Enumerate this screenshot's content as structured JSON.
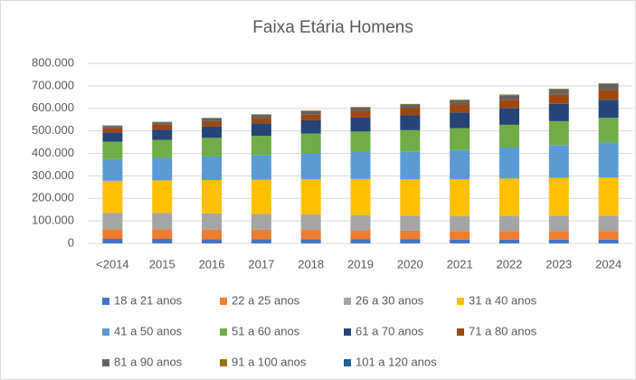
{
  "chart_data": {
    "type": "bar",
    "stacked": true,
    "title": "Faixa Etária  Homens",
    "categories": [
      "<2014",
      "2015",
      "2016",
      "2017",
      "2018",
      "2019",
      "2020",
      "2021",
      "2022",
      "2023",
      "2024"
    ],
    "ylim": [
      0,
      800000
    ],
    "yticks": [
      0,
      {
        "value": 100000,
        "label": "100.000"
      },
      {
        "value": 200000,
        "label": "200.000"
      },
      {
        "value": 300000,
        "label": "300.000"
      },
      {
        "value": 400000,
        "label": "400.000"
      },
      {
        "value": 500000,
        "label": "500.000"
      },
      {
        "value": 600000,
        "label": "600.000"
      },
      {
        "value": 700000,
        "label": "700.000"
      },
      {
        "value": 800000,
        "label": "800.000"
      }
    ],
    "grid": true,
    "legend": "bottom",
    "series": [
      {
        "name": "18 a 21 anos",
        "color": "#4472c4",
        "values": [
          20000,
          20000,
          19000,
          19000,
          19000,
          18000,
          18000,
          17000,
          17000,
          17000,
          17000
        ]
      },
      {
        "name": "22 a 25 anos",
        "color": "#ed7d31",
        "values": [
          42000,
          42000,
          42000,
          42000,
          41000,
          40000,
          39000,
          38000,
          38000,
          38000,
          38000
        ]
      },
      {
        "name": "26 a 30 anos",
        "color": "#a5a5a5",
        "values": [
          73000,
          73000,
          72000,
          70000,
          69000,
          68000,
          66000,
          66000,
          67000,
          68000,
          68000
        ]
      },
      {
        "name": "31 a 40 anos",
        "color": "#ffc000",
        "values": [
          143000,
          145000,
          148000,
          152000,
          156000,
          160000,
          162000,
          164000,
          166000,
          168000,
          170000
        ]
      },
      {
        "name": "41 a 50 anos",
        "color": "#5b9bd5",
        "values": [
          97000,
          100000,
          105000,
          110000,
          115000,
          120000,
          124000,
          130000,
          138000,
          146000,
          155000
        ]
      },
      {
        "name": "51 a 60 anos",
        "color": "#70ad47",
        "values": [
          77000,
          80000,
          83000,
          85000,
          88000,
          91000,
          94000,
          97000,
          101000,
          106000,
          110000
        ]
      },
      {
        "name": "61 a 70 anos",
        "color": "#264478",
        "values": [
          41000,
          46000,
          51000,
          55000,
          59000,
          62000,
          66000,
          70000,
          73000,
          77000,
          80000
        ]
      },
      {
        "name": "71 a 80 anos",
        "color": "#9e480e",
        "values": [
          19000,
          21000,
          23000,
          25000,
          27000,
          30000,
          32000,
          35000,
          38000,
          42000,
          45000
        ]
      },
      {
        "name": "81 a 90 anos",
        "color": "#636363",
        "values": [
          10000,
          11000,
          12000,
          13000,
          14000,
          15000,
          16000,
          18000,
          20000,
          22000,
          25000
        ]
      },
      {
        "name": "91 a 100 anos",
        "color": "#997300",
        "values": [
          2000,
          2000,
          2000,
          2000,
          2000,
          2000,
          2000,
          3000,
          3000,
          3000,
          3000
        ]
      },
      {
        "name": "101 a 120 anos",
        "color": "#255e91",
        "values": [
          500,
          500,
          500,
          500,
          500,
          500,
          500,
          500,
          500,
          500,
          500
        ]
      }
    ]
  }
}
